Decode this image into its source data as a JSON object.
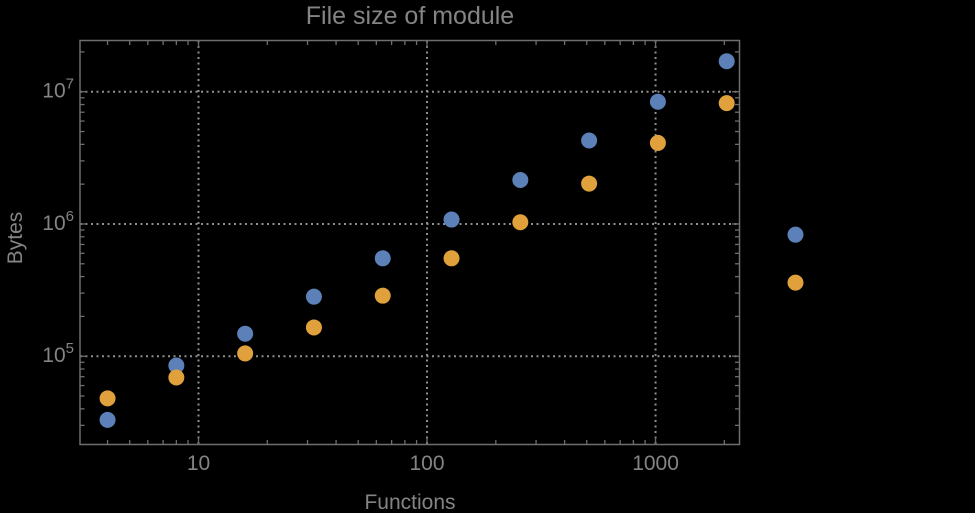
{
  "figure": {
    "title": "File size of module",
    "x_axis_label": "Functions",
    "y_axis_label": "Bytes"
  },
  "colors": {
    "background": "#000000",
    "frame": "#6e6e6e",
    "grid": "#8f8f8f",
    "text": "#848484",
    "series_blue": "#5b81b8",
    "series_orange": "#e0a13c"
  },
  "chart_data": {
    "type": "scatter",
    "title": "File size of module",
    "xlabel": "Functions",
    "ylabel": "Bytes",
    "xscale": "log",
    "yscale": "log",
    "x": [
      4,
      8,
      16,
      32,
      64,
      128,
      256,
      512,
      1024,
      2048,
      4096
    ],
    "series": [
      {
        "name": "blue",
        "color": "#5b81b8",
        "values": [
          33000,
          85000,
          148000,
          282000,
          550000,
          1080000,
          2150000,
          4280000,
          8400000,
          17000000,
          830000
        ]
      },
      {
        "name": "orange",
        "color": "#e0a13c",
        "values": [
          48000,
          69000,
          105000,
          165000,
          287000,
          550000,
          1030000,
          2020000,
          4100000,
          8200000,
          360000
        ]
      }
    ],
    "xticks": [
      {
        "value": 10,
        "label": "10"
      },
      {
        "value": 100,
        "label": "100"
      },
      {
        "value": 1000,
        "label": "1000"
      }
    ],
    "yticks": [
      {
        "value": 100000,
        "base": "10",
        "exp": "5"
      },
      {
        "value": 1000000,
        "base": "10",
        "exp": "6"
      },
      {
        "value": 10000000,
        "base": "10",
        "exp": "7"
      }
    ],
    "xlim": [
      3.03,
      2330
    ],
    "ylim": [
      21500,
      24400000
    ],
    "grid": "dotted lines at decade ticks, both axes",
    "legend_position": "none",
    "plot_range_clipping": false
  }
}
